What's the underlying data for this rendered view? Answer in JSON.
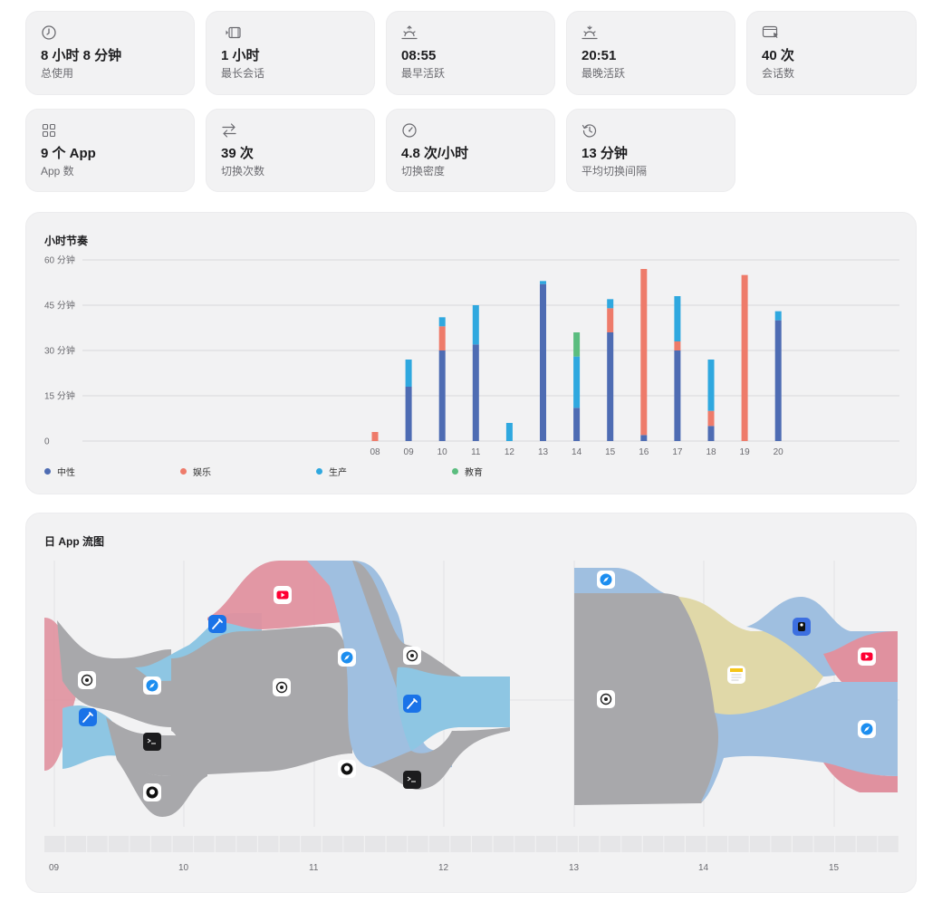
{
  "stats_row1": [
    {
      "icon": "clock-icon",
      "value": "8 小时 8 分钟",
      "label": "总使用"
    },
    {
      "icon": "film-icon",
      "value": "1 小时",
      "label": "最长会话"
    },
    {
      "icon": "sunrise-icon",
      "value": "08:55",
      "label": "最早活跃"
    },
    {
      "icon": "sunset-icon",
      "value": "20:51",
      "label": "最晚活跃"
    },
    {
      "icon": "window-cursor-icon",
      "value": "40 次",
      "label": "会话数"
    }
  ],
  "stats_row2": [
    {
      "icon": "grid-icon",
      "value": "9 个 App",
      "label": "App 数"
    },
    {
      "icon": "switch-arrows-icon",
      "value": "39 次",
      "label": "切换次数"
    },
    {
      "icon": "gauge-icon",
      "value": "4.8 次/小时",
      "label": "切换密度"
    },
    {
      "icon": "history-icon",
      "value": "13 分钟",
      "label": "平均切换间隔"
    }
  ],
  "hourly": {
    "title": "小时节奏",
    "chart_data": {
      "type": "bar",
      "stacked": true,
      "categories": [
        "08",
        "09",
        "10",
        "11",
        "12",
        "13",
        "14",
        "15",
        "16",
        "17",
        "18",
        "19",
        "20"
      ],
      "series": [
        {
          "name": "中性",
          "color": "#4e6cb3",
          "values": [
            0,
            18,
            30,
            32,
            0,
            52,
            11,
            36,
            2,
            30,
            5,
            0,
            40
          ]
        },
        {
          "name": "娱乐",
          "color": "#ee7b6a",
          "values": [
            3,
            0,
            8,
            0,
            0,
            0,
            0,
            8,
            55,
            3,
            5,
            55,
            0
          ]
        },
        {
          "name": "生产",
          "color": "#2fa8df",
          "values": [
            0,
            9,
            3,
            13,
            6,
            1,
            17,
            3,
            0,
            15,
            17,
            0,
            3
          ]
        },
        {
          "name": "教育",
          "color": "#5bbd7f",
          "values": [
            0,
            0,
            0,
            0,
            0,
            0,
            8,
            0,
            0,
            0,
            0,
            0,
            0
          ]
        }
      ],
      "y_ticks": [
        "0",
        "15 分钟",
        "30 分钟",
        "45 分钟",
        "60 分钟"
      ],
      "ylim": [
        0,
        60
      ],
      "grid": true,
      "legend": "bottom-left"
    }
  },
  "flow": {
    "title": "日 App 流图",
    "hour_labels": [
      "09",
      "10",
      "11",
      "12",
      "13",
      "14",
      "15"
    ],
    "colors": {
      "chatgpt": "#a8a8ab",
      "entertainment": "#e0919f",
      "productivity": "#8ec6e3",
      "safari": "#9fbfe0",
      "notes": "#e0d8a8"
    }
  }
}
